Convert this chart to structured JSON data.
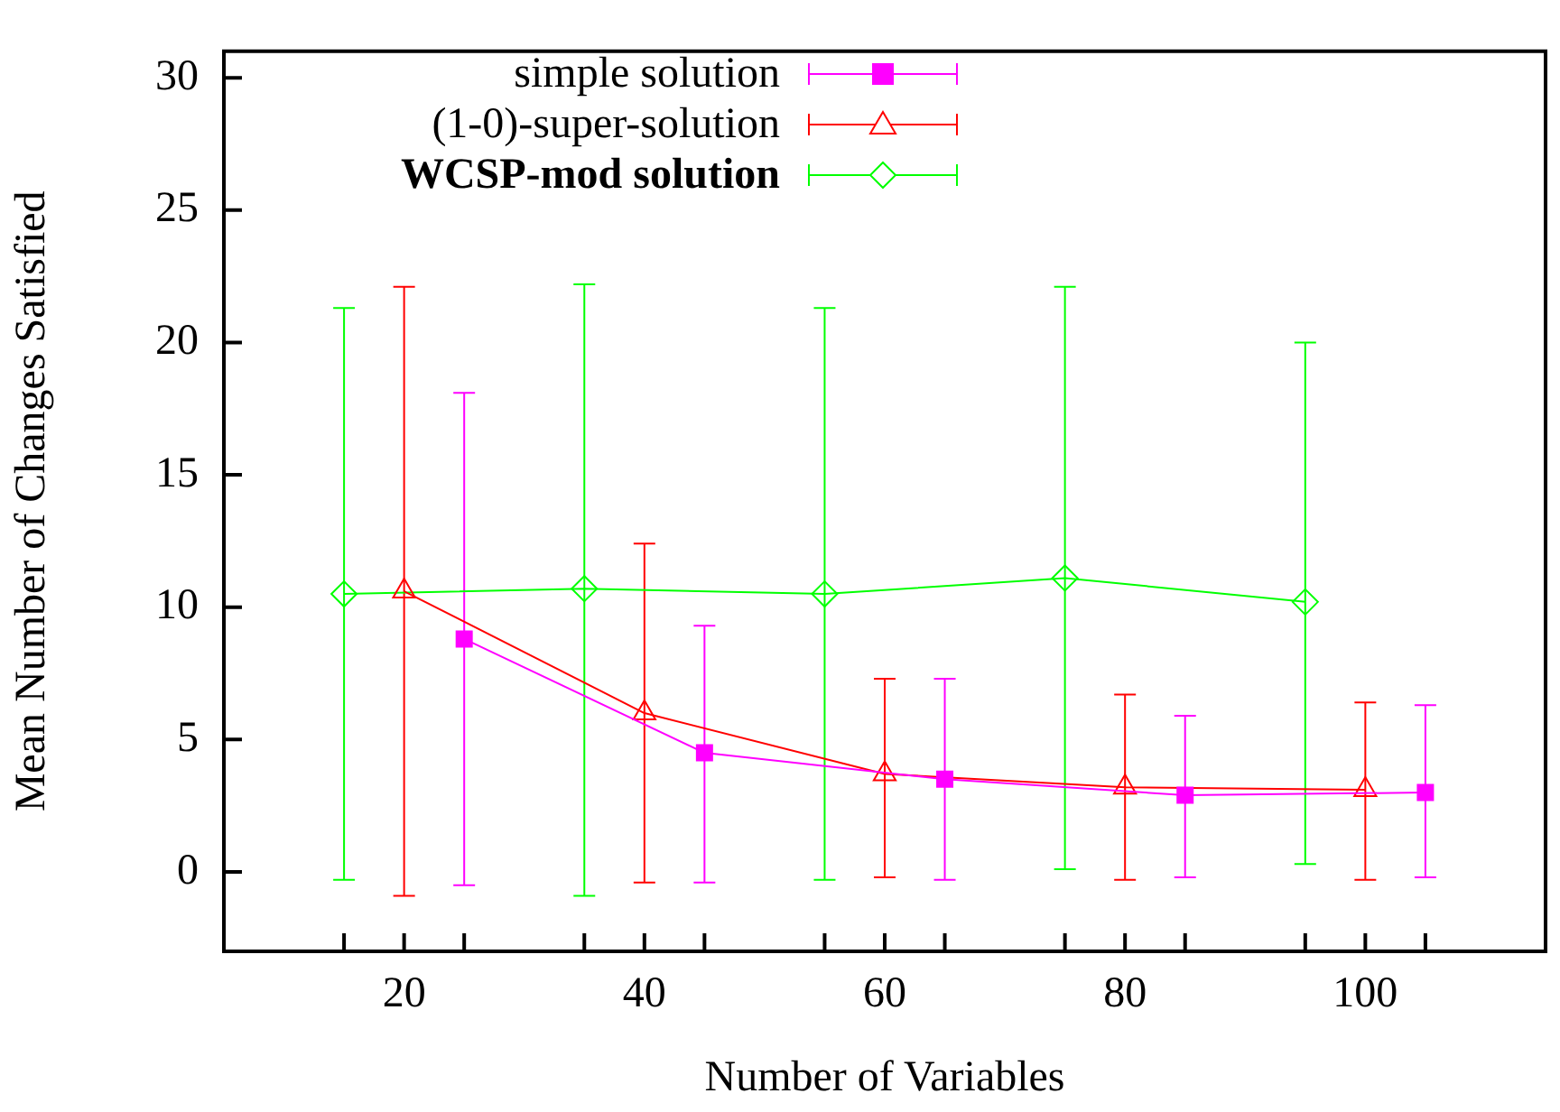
{
  "chart_data": {
    "type": "line",
    "xlabel": "Number of Variables",
    "ylabel": "Mean Number of Changes Satisfied",
    "xlim": [
      5,
      115
    ],
    "ylim": [
      -3,
      31
    ],
    "xticks": [
      {
        "value": 15,
        "label": null
      },
      20,
      {
        "value": 25,
        "label": null
      },
      {
        "value": 35,
        "label": null
      },
      40,
      {
        "value": 45,
        "label": null
      },
      {
        "value": 55,
        "label": null
      },
      60,
      {
        "value": 65,
        "label": null
      },
      {
        "value": 75,
        "label": null
      },
      80,
      {
        "value": 85,
        "label": null
      },
      {
        "value": 95,
        "label": null
      },
      100,
      {
        "value": 105,
        "label": null
      }
    ],
    "yticks": [
      0,
      5,
      10,
      15,
      20,
      25,
      30
    ],
    "grid": false,
    "legend": "top",
    "line_style": "solid",
    "series": [
      {
        "name": "simple solution",
        "color": "#ff00ff",
        "marker": "square",
        "x": [
          25,
          45,
          65,
          85,
          105
        ],
        "values": [
          8.8,
          4.5,
          3.5,
          2.9,
          3.0
        ],
        "errors": [
          [
            -0.5,
            18.1
          ],
          [
            -0.4,
            9.3
          ],
          [
            -0.3,
            7.3
          ],
          [
            -0.2,
            5.9
          ],
          [
            -0.2,
            6.3
          ]
        ]
      },
      {
        "name": "(1-0)-super-solution",
        "color": "#ff0000",
        "marker": "triangle",
        "x": [
          20,
          40,
          60,
          80,
          100
        ],
        "values": [
          10.6,
          6.0,
          3.7,
          3.2,
          3.1
        ],
        "errors": [
          [
            -0.9,
            22.1
          ],
          [
            -0.4,
            12.4
          ],
          [
            -0.2,
            7.3
          ],
          [
            -0.3,
            6.7
          ],
          [
            -0.3,
            6.4
          ]
        ]
      },
      {
        "name": "WCSP-mod solution",
        "color": "#00ff00",
        "marker": "diamond",
        "x": [
          15,
          35,
          55,
          75,
          95
        ],
        "values": [
          10.5,
          10.7,
          10.5,
          11.1,
          10.2
        ],
        "errors": [
          [
            -0.3,
            21.3
          ],
          [
            -0.9,
            22.2
          ],
          [
            -0.3,
            21.3
          ],
          [
            0.1,
            22.1
          ],
          [
            0.3,
            20.0
          ]
        ]
      }
    ]
  }
}
